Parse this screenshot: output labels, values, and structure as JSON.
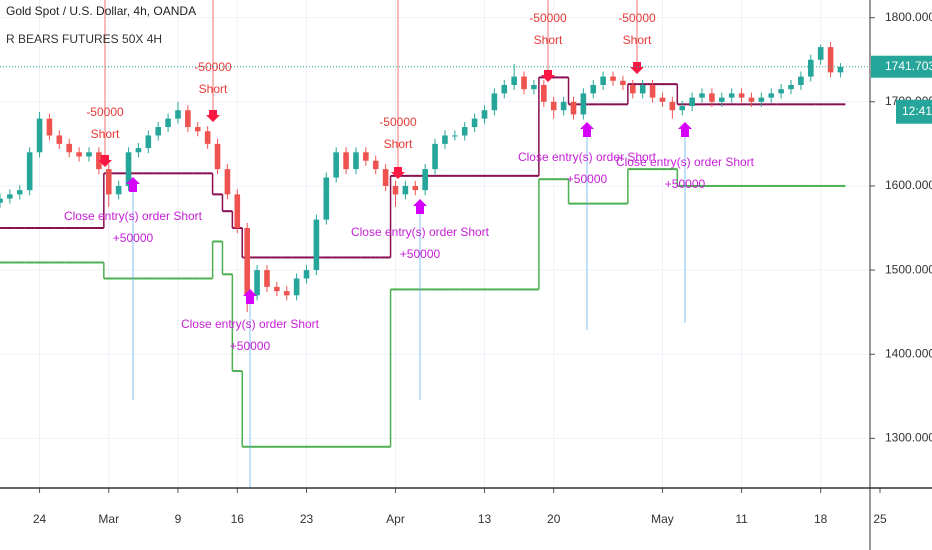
{
  "chart_data": {
    "type": "candlestick",
    "title": "Gold Spot / U.S. Dollar, 4h, OANDA",
    "indicator": "R BEARS FUTURES 50X 4H",
    "categories": [
      null,
      null,
      null,
      null,
      "24",
      null,
      null,
      null,
      null,
      null,
      null,
      "Mar",
      null,
      null,
      null,
      null,
      null,
      null,
      "9",
      null,
      null,
      null,
      null,
      null,
      "16",
      null,
      null,
      null,
      null,
      null,
      null,
      "23",
      null,
      null,
      null,
      null,
      null,
      null,
      null,
      null,
      "Apr",
      null,
      null,
      null,
      null,
      null,
      null,
      null,
      null,
      "13",
      null,
      null,
      null,
      null,
      null,
      null,
      "20",
      null,
      null,
      null,
      null,
      null,
      null,
      null,
      null,
      null,
      null,
      "May",
      null,
      null,
      null,
      null,
      null,
      null,
      null,
      "11",
      null,
      null,
      null,
      null,
      null,
      null,
      null,
      "18",
      null,
      null,
      null,
      null,
      null,
      "25"
    ],
    "open": [
      1580,
      1585,
      1590,
      1595,
      1640,
      1680,
      1660,
      1650,
      1640,
      1635,
      1640,
      1620,
      1590,
      1600,
      1640,
      1645,
      1660,
      1670,
      1680,
      1690,
      1670,
      1665,
      1650,
      1620,
      1590,
      1550,
      1470,
      1500,
      1480,
      1475,
      1470,
      1490,
      1500,
      1560,
      1610,
      1640,
      1620,
      1640,
      1630,
      1620,
      1600,
      1590,
      1600,
      1595,
      1620,
      1650,
      1660,
      1660,
      1670,
      1680,
      1690,
      1710,
      1720,
      1730,
      1715,
      1720,
      1700,
      1690,
      1700,
      1685,
      1710,
      1720,
      1730,
      1725,
      1720,
      1710,
      1720,
      1705,
      1700,
      1690,
      1695,
      1705,
      1710,
      1700,
      1705,
      1710,
      1705,
      1700,
      1705,
      1710,
      1715,
      1720,
      1730,
      1750,
      1765,
      1735,
      null,
      null,
      null,
      null
    ],
    "high": [
      1591,
      1596,
      1601,
      1646,
      1688,
      1686,
      1666,
      1656,
      1646,
      1646,
      1646,
      1626,
      1606,
      1646,
      1651,
      1666,
      1676,
      1686,
      1700,
      1696,
      1676,
      1671,
      1656,
      1626,
      1596,
      1556,
      1506,
      1506,
      1486,
      1481,
      1496,
      1506,
      1566,
      1616,
      1646,
      1646,
      1646,
      1646,
      1636,
      1626,
      1606,
      1606,
      1606,
      1626,
      1656,
      1666,
      1666,
      1676,
      1686,
      1696,
      1716,
      1726,
      1745,
      1736,
      1726,
      1726,
      1706,
      1706,
      1706,
      1716,
      1726,
      1736,
      1736,
      1731,
      1726,
      1726,
      1726,
      1711,
      1706,
      1701,
      1711,
      1716,
      1716,
      1711,
      1716,
      1716,
      1711,
      1711,
      1716,
      1721,
      1726,
      1736,
      1756,
      1768,
      1771,
      1746,
      null,
      null,
      null,
      null
    ],
    "low": [
      1574,
      1579,
      1584,
      1589,
      1634,
      1654,
      1644,
      1634,
      1629,
      1629,
      1614,
      1575,
      1584,
      1594,
      1634,
      1639,
      1654,
      1664,
      1674,
      1664,
      1659,
      1644,
      1614,
      1584,
      1544,
      1450,
      1464,
      1474,
      1469,
      1464,
      1464,
      1484,
      1494,
      1554,
      1604,
      1614,
      1614,
      1624,
      1614,
      1594,
      1575,
      1584,
      1589,
      1589,
      1614,
      1644,
      1654,
      1654,
      1664,
      1674,
      1684,
      1704,
      1714,
      1709,
      1709,
      1694,
      1680,
      1684,
      1679,
      1679,
      1704,
      1714,
      1719,
      1714,
      1704,
      1704,
      1699,
      1694,
      1680,
      1684,
      1689,
      1699,
      1694,
      1694,
      1699,
      1699,
      1694,
      1694,
      1699,
      1704,
      1709,
      1714,
      1724,
      1744,
      1729,
      1729,
      null,
      null,
      null,
      null
    ],
    "close": [
      1585,
      1590,
      1595,
      1640,
      1680,
      1660,
      1650,
      1640,
      1635,
      1640,
      1620,
      1590,
      1600,
      1640,
      1645,
      1660,
      1670,
      1680,
      1690,
      1670,
      1665,
      1650,
      1620,
      1590,
      1550,
      1470,
      1500,
      1480,
      1475,
      1470,
      1490,
      1500,
      1560,
      1610,
      1640,
      1620,
      1640,
      1630,
      1620,
      1600,
      1590,
      1600,
      1595,
      1620,
      1650,
      1660,
      1660,
      1670,
      1680,
      1690,
      1710,
      1720,
      1730,
      1715,
      1720,
      1700,
      1690,
      1700,
      1685,
      1710,
      1720,
      1730,
      1725,
      1720,
      1710,
      1720,
      1705,
      1700,
      1690,
      1695,
      1705,
      1710,
      1700,
      1705,
      1710,
      1705,
      1700,
      1705,
      1710,
      1715,
      1720,
      1730,
      1750,
      1765,
      1735,
      1741.7,
      null,
      null,
      null,
      null
    ],
    "up_color": "#26a69a",
    "down_color": "#ef5350",
    "stop_lines": [
      {
        "color": "#880e4f",
        "values": [
          1550,
          1550,
          1550,
          1550,
          1550,
          1550,
          1550,
          1550,
          1550,
          1550,
          1550,
          1615,
          1615,
          1615,
          1615,
          1615,
          1615,
          1615,
          1615,
          1615,
          1615,
          1615,
          1590,
          1570,
          1550,
          1515,
          1515,
          1515,
          1515,
          1515,
          1515,
          1515,
          1515,
          1515,
          1515,
          1515,
          1515,
          1515,
          1515,
          1515,
          1612,
          1612,
          1612,
          1612,
          1612,
          1612,
          1612,
          1612,
          1612,
          1612,
          1612,
          1612,
          1612,
          1612,
          1612,
          1729,
          1729,
          1729,
          1697,
          1697,
          1697,
          1697,
          1697,
          1697,
          1721,
          1721,
          1721,
          1721,
          1721,
          1697,
          1697,
          1697,
          1697,
          1697,
          1697,
          1697,
          1697,
          1697,
          1697,
          1697,
          1697,
          1697,
          1697,
          1697,
          1697,
          1697,
          null,
          null,
          null,
          null
        ]
      },
      {
        "color": "#4caf50",
        "values": [
          1509,
          1509,
          1509,
          1509,
          1509,
          1509,
          1509,
          1509,
          1509,
          1509,
          1509,
          1490,
          1490,
          1490,
          1490,
          1490,
          1490,
          1490,
          1490,
          1490,
          1490,
          1490,
          1534,
          1495,
          1380,
          1290,
          1290,
          1290,
          1290,
          1290,
          1290,
          1290,
          1290,
          1290,
          1290,
          1290,
          1290,
          1290,
          1290,
          1290,
          1477,
          1477,
          1477,
          1477,
          1477,
          1477,
          1477,
          1477,
          1477,
          1477,
          1477,
          1477,
          1477,
          1477,
          1477,
          1608,
          1608,
          1608,
          1579,
          1579,
          1579,
          1579,
          1579,
          1579,
          1620,
          1620,
          1620,
          1620,
          1620,
          1600,
          1600,
          1600,
          1600,
          1600,
          1600,
          1600,
          1600,
          1600,
          1600,
          1600,
          1600,
          1600,
          1600,
          1600,
          1600,
          1600,
          null,
          null,
          null,
          null
        ]
      }
    ],
    "ylim": [
      1241,
      1821
    ],
    "yticks": [
      {
        "value": 1300,
        "label": "1300.000"
      },
      {
        "value": 1400,
        "label": "1400.000"
      },
      {
        "value": 1500,
        "label": "1500.000"
      },
      {
        "value": 1600,
        "label": "1600.000"
      },
      {
        "value": 1700,
        "label": "1700.000"
      },
      {
        "value": 1800,
        "label": "1800.000"
      }
    ],
    "grid": true,
    "last_price": 1741.703,
    "countdown": "12:41",
    "entries": [
      {
        "amount": "-50000",
        "label": "Short"
      },
      {
        "amount": "-50000",
        "label": "Short"
      },
      {
        "amount": "-50000",
        "label": "Short"
      },
      {
        "amount": "-50000",
        "label": "Short"
      },
      {
        "amount": "-50000",
        "label": "Short"
      }
    ],
    "exits": [
      {
        "label": "Close entry(s) order Short",
        "amount": "+50000"
      },
      {
        "label": "Close entry(s) order Short",
        "amount": "+50000"
      },
      {
        "label": "Close entry(s) order Short",
        "amount": "+50000"
      },
      {
        "label": "Close entry(s) order Short",
        "amount": "+50000"
      },
      {
        "label": "Close entry(s) order Short",
        "amount": "+50000"
      }
    ]
  }
}
